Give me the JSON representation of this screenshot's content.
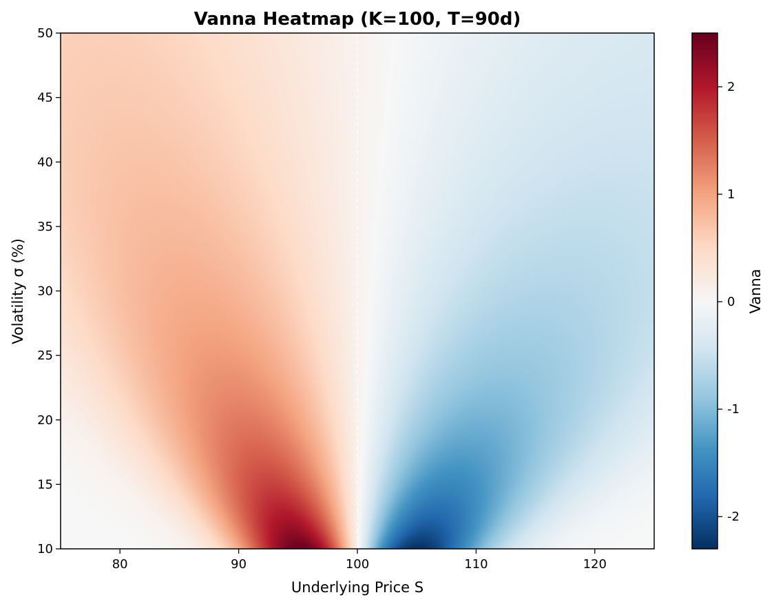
{
  "chart_data": {
    "type": "heatmap",
    "title": "Vanna Heatmap (K=100, T=90d)",
    "xlabel": "Underlying Price S",
    "ylabel": "Volatility σ (%)",
    "colorbar_label": "Vanna",
    "xlim": [
      75,
      125
    ],
    "ylim": [
      10,
      50
    ],
    "clim": [
      -2.3,
      2.5
    ],
    "x_ticks": [
      80,
      90,
      100,
      110,
      120
    ],
    "y_ticks": [
      10,
      15,
      20,
      25,
      30,
      35,
      40,
      45,
      50
    ],
    "colorbar_ticks": [
      -2,
      -1,
      0,
      1,
      2
    ],
    "strike": 100,
    "colormap": "RdBu_r",
    "colormap_stops": [
      "#053061",
      "#2166ac",
      "#4393c3",
      "#92c5de",
      "#d1e5f0",
      "#f7f7f7",
      "#fddbc7",
      "#f4a582",
      "#d6604d",
      "#b2182b",
      "#67001f"
    ],
    "grid": false
  }
}
